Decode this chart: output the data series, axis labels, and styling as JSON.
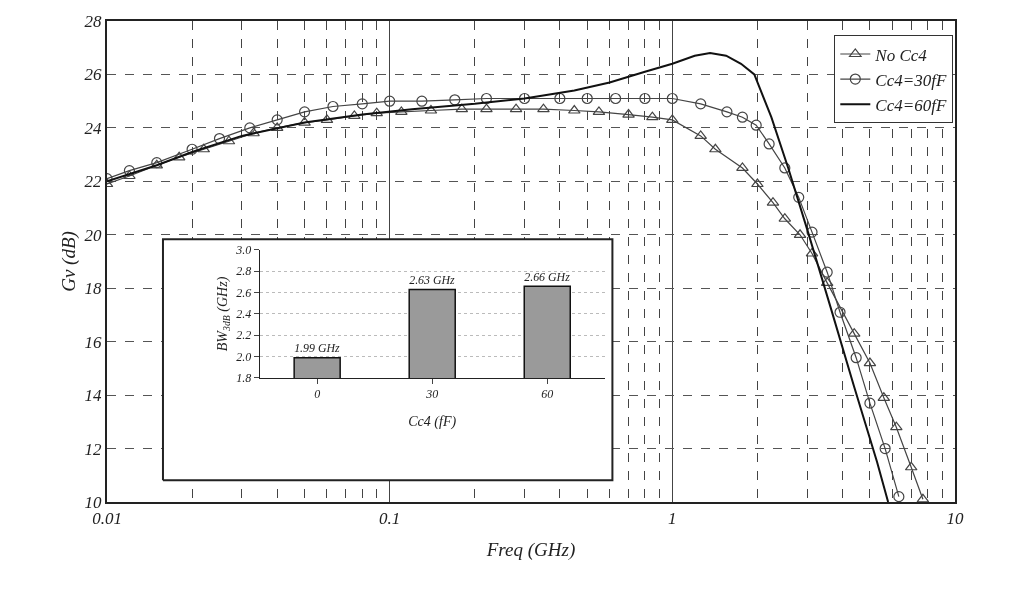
{
  "chart_data": [
    {
      "type": "line",
      "xlabel": "Freq (GHz)",
      "ylabel": "Gv (dB)",
      "log": "x",
      "xlim": [
        0.01,
        10
      ],
      "xticks": [
        0.01,
        0.1,
        1,
        10
      ],
      "ylim": [
        10,
        28
      ],
      "yticks": [
        10,
        12,
        14,
        16,
        18,
        20,
        22,
        24,
        26,
        28
      ],
      "grid": true,
      "legend": "top right",
      "series": [
        {
          "name": "No Cc4",
          "color": "#444444",
          "marker": "triangle",
          "x": [
            0.01,
            0.012,
            0.015,
            0.018,
            0.022,
            0.027,
            0.033,
            0.04,
            0.05,
            0.06,
            0.075,
            0.09,
            0.11,
            0.14,
            0.18,
            0.22,
            0.28,
            0.35,
            0.45,
            0.55,
            0.7,
            0.85,
            1.0,
            1.26,
            1.42,
            1.77,
            2.0,
            2.27,
            2.5,
            2.83,
            3.12,
            3.53,
            4.4,
            5.0,
            5.6,
            6.2,
            7.0,
            7.7
          ],
          "values": [
            21.9,
            22.2,
            22.6,
            22.9,
            23.2,
            23.5,
            23.8,
            24.0,
            24.2,
            24.3,
            24.45,
            24.55,
            24.6,
            24.65,
            24.7,
            24.7,
            24.7,
            24.7,
            24.65,
            24.6,
            24.5,
            24.4,
            24.3,
            23.7,
            23.2,
            22.5,
            21.9,
            21.2,
            20.6,
            20.0,
            19.3,
            18.2,
            16.3,
            15.2,
            13.9,
            12.8,
            11.3,
            10.1
          ]
        },
        {
          "name": "Cc4=30fF",
          "color": "#444444",
          "marker": "circle",
          "x": [
            0.01,
            0.012,
            0.015,
            0.02,
            0.025,
            0.032,
            0.04,
            0.05,
            0.063,
            0.08,
            0.1,
            0.13,
            0.17,
            0.22,
            0.3,
            0.4,
            0.5,
            0.63,
            0.8,
            1.0,
            1.26,
            1.56,
            1.77,
            1.98,
            2.2,
            2.5,
            2.8,
            3.12,
            3.53,
            3.92,
            4.47,
            5.0,
            5.66,
            6.33
          ],
          "values": [
            22.1,
            22.4,
            22.7,
            23.2,
            23.6,
            24.0,
            24.3,
            24.6,
            24.8,
            24.9,
            25.0,
            25.0,
            25.05,
            25.1,
            25.1,
            25.1,
            25.1,
            25.1,
            25.1,
            25.1,
            24.9,
            24.6,
            24.4,
            24.1,
            23.4,
            22.5,
            21.4,
            20.1,
            18.6,
            17.1,
            15.4,
            13.7,
            12.0,
            10.2
          ]
        },
        {
          "name": "Cc4=60fF",
          "color": "#111111",
          "marker": "none",
          "x": [
            0.01,
            0.015,
            0.02,
            0.03,
            0.05,
            0.08,
            0.12,
            0.2,
            0.3,
            0.45,
            0.6,
            0.8,
            1.0,
            1.2,
            1.36,
            1.55,
            1.75,
            1.95,
            2.24,
            2.57,
            3.02,
            3.65,
            4.4,
            5.3,
            5.8
          ],
          "values": [
            22.0,
            22.6,
            23.1,
            23.7,
            24.2,
            24.5,
            24.7,
            24.9,
            25.1,
            25.4,
            25.7,
            26.1,
            26.4,
            26.7,
            26.8,
            26.7,
            26.4,
            26.0,
            24.4,
            22.5,
            20.1,
            17.2,
            14.3,
            11.5,
            10.0
          ]
        }
      ]
    },
    {
      "type": "bar",
      "xlabel": "Cc4 (fF)",
      "ylabel": "BW$_{3dB}$ (GHz)",
      "categories": [
        "0",
        "30",
        "60"
      ],
      "values": [
        1.99,
        2.63,
        2.66
      ],
      "value_labels": [
        "1.99 GHz",
        "2.63 GHz",
        "2.66 GHz"
      ],
      "color": "#9a9a9a",
      "ylim": [
        1.8,
        3.0
      ],
      "yticks": [
        1.8,
        {
          "value": 2.0,
          "label": "2.0"
        },
        2.2,
        2.4,
        2.6,
        2.8,
        {
          "value": 3.0,
          "label": "3.0"
        }
      ],
      "grid": "y"
    }
  ]
}
